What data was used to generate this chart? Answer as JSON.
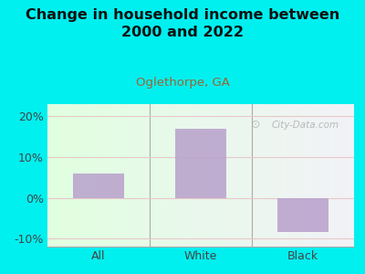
{
  "title": "Change in household income between\n2000 and 2022",
  "subtitle": "Oglethorpe, GA",
  "categories": [
    "All",
    "White",
    "Black"
  ],
  "values": [
    6.0,
    17.0,
    -8.5
  ],
  "bar_color": "#b8a0cc",
  "title_fontsize": 11.5,
  "subtitle_fontsize": 9.5,
  "subtitle_color": "#996633",
  "tick_label_fontsize": 9,
  "ylim": [
    -12,
    23
  ],
  "yticks": [
    -10,
    0,
    10,
    20
  ],
  "yticklabels": [
    "-10%",
    "0%",
    "10%",
    "20%"
  ],
  "bg_color": "#00f0f0",
  "grid_color": "#e8c8c8",
  "watermark": "City-Data.com",
  "bar_width": 0.5,
  "bar_alpha": 0.85
}
